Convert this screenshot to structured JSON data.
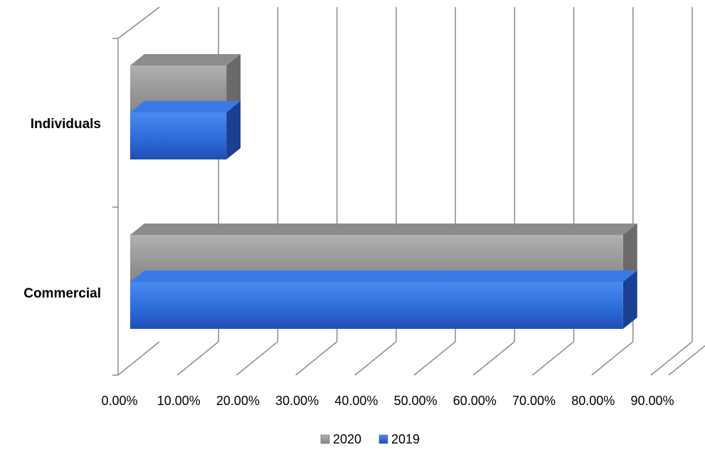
{
  "chart_data": {
    "type": "bar",
    "orientation": "horizontal",
    "three_d": true,
    "categories": [
      "Individuals",
      "Commercial"
    ],
    "series": [
      {
        "name": "2020",
        "values": [
          16.6,
          83.6
        ],
        "color": "#9a9a9a"
      },
      {
        "name": "2019",
        "values": [
          16.6,
          83.6
        ],
        "color": "#2f6fdc"
      }
    ],
    "x_ticks": [
      "0.00%",
      "10.00%",
      "20.00%",
      "30.00%",
      "40.00%",
      "50.00%",
      "60.00%",
      "70.00%",
      "80.00%",
      "90.00%"
    ],
    "xlim": [
      0,
      90
    ],
    "grid": true,
    "legend": {
      "position": "bottom",
      "entries": [
        "2020",
        "2019"
      ]
    },
    "title": "",
    "xlabel": "",
    "ylabel": ""
  }
}
